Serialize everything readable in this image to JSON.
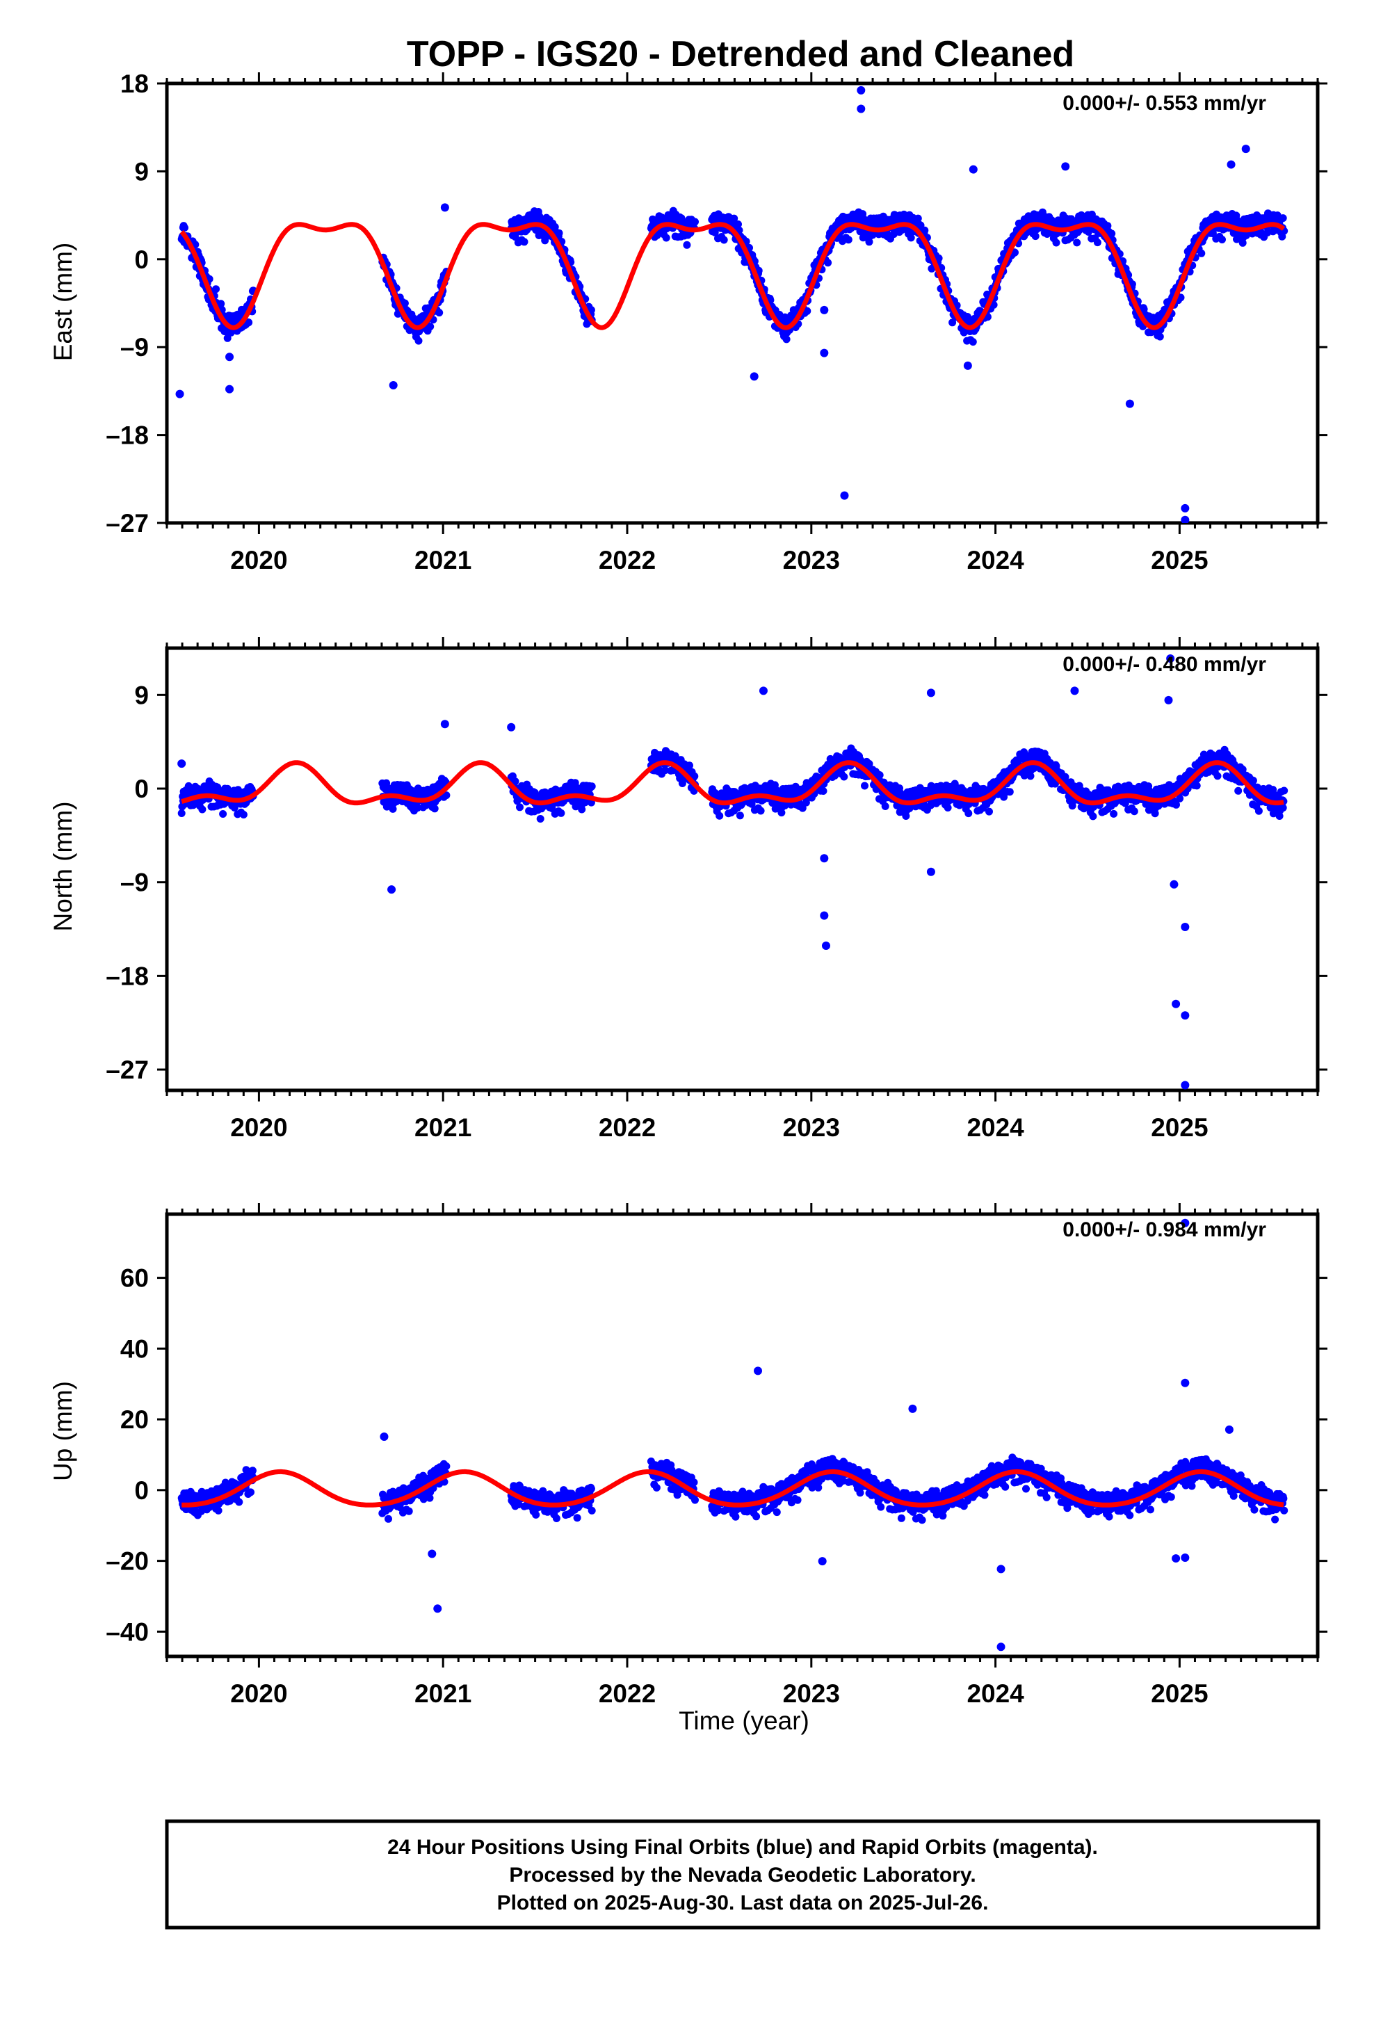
{
  "title": "TOPP - IGS20 - Detrended and Cleaned",
  "xlabel": "Time (year)",
  "footer": [
    "24 Hour Positions Using Final Orbits (blue) and Rapid Orbits (magenta).",
    "Processed by the Nevada Geodetic Laboratory.",
    "Plotted on 2025-Aug-30. Last data on 2025-Jul-26."
  ],
  "colors": {
    "points": "#0000ff",
    "model": "#ff0000",
    "frame": "#000000",
    "background": "#ffffff"
  },
  "chart_data": [
    {
      "type": "scatter",
      "name": "east",
      "ylabel": "East (mm)",
      "rate_text": "0.000+/- 0.553 mm/yr",
      "xlim": [
        2019.5,
        2025.75
      ],
      "ylim": [
        -27,
        18
      ],
      "yticks": [
        18,
        9,
        0,
        -9,
        -18,
        -27
      ],
      "ytick_labels": [
        "18",
        "9",
        "0",
        "-9",
        "-18",
        "-27"
      ],
      "xticks": [
        2020,
        2021,
        2022,
        2023,
        2024,
        2025
      ],
      "xtick_labels": [
        "2020",
        "2021",
        "2022",
        "2023",
        "2024",
        "2025"
      ],
      "data_spans": [
        [
          2019.58,
          2019.97
        ],
        [
          2020.67,
          2021.02
        ],
        [
          2021.37,
          2021.81
        ],
        [
          2022.13,
          2022.37
        ],
        [
          2022.46,
          2025.57
        ]
      ],
      "seasonal_model": {
        "amp_annual": 5.0,
        "phase_annual_deg": -40,
        "amp_semiannual": 2.0,
        "phase_semiannual_deg": 10,
        "offset": 0.0
      },
      "points": [
        {
          "x": 2019.57,
          "y": -13.8
        },
        {
          "x": 2019.84,
          "y": -13.3
        },
        {
          "x": 2019.84,
          "y": -10.0
        },
        {
          "x": 2020.73,
          "y": -12.9
        },
        {
          "x": 2021.01,
          "y": 5.3
        },
        {
          "x": 2022.69,
          "y": -12.0
        },
        {
          "x": 2023.07,
          "y": -9.6
        },
        {
          "x": 2023.07,
          "y": -5.2
        },
        {
          "x": 2023.18,
          "y": -24.2
        },
        {
          "x": 2023.27,
          "y": 17.3
        },
        {
          "x": 2023.27,
          "y": 15.4
        },
        {
          "x": 2023.88,
          "y": 9.2
        },
        {
          "x": 2023.85,
          "y": -10.9
        },
        {
          "x": 2024.38,
          "y": 9.5
        },
        {
          "x": 2024.73,
          "y": -14.8
        },
        {
          "x": 2025.03,
          "y": -25.5
        },
        {
          "x": 2025.03,
          "y": -26.7
        },
        {
          "x": 2025.36,
          "y": 11.3
        },
        {
          "x": 2025.28,
          "y": 9.7
        }
      ]
    },
    {
      "type": "scatter",
      "name": "north",
      "ylabel": "North (mm)",
      "rate_text": "0.000+/- 0.480 mm/yr",
      "xlim": [
        2019.5,
        2025.75
      ],
      "ylim": [
        -29,
        13.5
      ],
      "yticks": [
        9,
        0,
        -9,
        -18,
        -27
      ],
      "ytick_labels": [
        "9",
        "0",
        "-9",
        "-18",
        "-27"
      ],
      "xticks": [
        2020,
        2021,
        2022,
        2023,
        2024,
        2025
      ],
      "xtick_labels": [
        "2020",
        "2021",
        "2022",
        "2023",
        "2024",
        "2025"
      ],
      "data_spans": [
        [
          2019.58,
          2019.97
        ],
        [
          2020.67,
          2021.02
        ],
        [
          2021.37,
          2021.81
        ],
        [
          2022.13,
          2022.37
        ],
        [
          2022.46,
          2025.57
        ]
      ],
      "seasonal_model": {
        "amp_annual": 1.6,
        "phase_annual_deg": 20,
        "amp_semiannual": 0.9,
        "phase_semiannual_deg": -60,
        "offset": 0.0
      },
      "points": [
        {
          "x": 2019.58,
          "y": 2.4
        },
        {
          "x": 2020.72,
          "y": -9.7
        },
        {
          "x": 2021.01,
          "y": 6.2
        },
        {
          "x": 2021.37,
          "y": 5.9
        },
        {
          "x": 2022.74,
          "y": 9.4
        },
        {
          "x": 2023.07,
          "y": -12.2
        },
        {
          "x": 2023.08,
          "y": -15.1
        },
        {
          "x": 2023.07,
          "y": -6.7
        },
        {
          "x": 2023.65,
          "y": -8.0
        },
        {
          "x": 2023.65,
          "y": 9.2
        },
        {
          "x": 2024.43,
          "y": 9.4
        },
        {
          "x": 2024.95,
          "y": 12.5
        },
        {
          "x": 2024.94,
          "y": 8.5
        },
        {
          "x": 2024.97,
          "y": -9.2
        },
        {
          "x": 2025.03,
          "y": -13.3
        },
        {
          "x": 2024.98,
          "y": -20.7
        },
        {
          "x": 2025.03,
          "y": -21.8
        },
        {
          "x": 2025.03,
          "y": -28.5
        }
      ]
    },
    {
      "type": "scatter",
      "name": "up",
      "ylabel": "Up (mm)",
      "rate_text": "0.000+/- 0.984 mm/yr",
      "xlim": [
        2019.5,
        2025.75
      ],
      "ylim": [
        -47,
        78
      ],
      "yticks": [
        60,
        40,
        20,
        0,
        -20,
        -40
      ],
      "ytick_labels": [
        "60",
        "40",
        "20",
        "0",
        "-20",
        "-40"
      ],
      "xticks": [
        2020,
        2021,
        2022,
        2023,
        2024,
        2025
      ],
      "xtick_labels": [
        "2020",
        "2021",
        "2022",
        "2023",
        "2024",
        "2025"
      ],
      "data_spans": [
        [
          2019.58,
          2019.97
        ],
        [
          2020.67,
          2021.02
        ],
        [
          2021.37,
          2021.81
        ],
        [
          2022.13,
          2022.37
        ],
        [
          2022.46,
          2025.57
        ]
      ],
      "seasonal_model": {
        "amp_annual": 4.7,
        "phase_annual_deg": 50,
        "amp_semiannual": 0.5,
        "phase_semiannual_deg": 0,
        "offset": 0.0
      },
      "points": [
        {
          "x": 2020.97,
          "y": -33.5
        },
        {
          "x": 2020.68,
          "y": 15.1
        },
        {
          "x": 2020.94,
          "y": -18.0
        },
        {
          "x": 2022.71,
          "y": 33.7
        },
        {
          "x": 2023.55,
          "y": 23.0
        },
        {
          "x": 2024.03,
          "y": -44.3
        },
        {
          "x": 2024.03,
          "y": -22.3
        },
        {
          "x": 2025.03,
          "y": 75.5
        },
        {
          "x": 2025.03,
          "y": 30.3
        },
        {
          "x": 2025.03,
          "y": -19.1
        },
        {
          "x": 2024.98,
          "y": -19.3
        },
        {
          "x": 2025.27,
          "y": 17.1
        },
        {
          "x": 2023.06,
          "y": -20.1
        }
      ]
    }
  ]
}
